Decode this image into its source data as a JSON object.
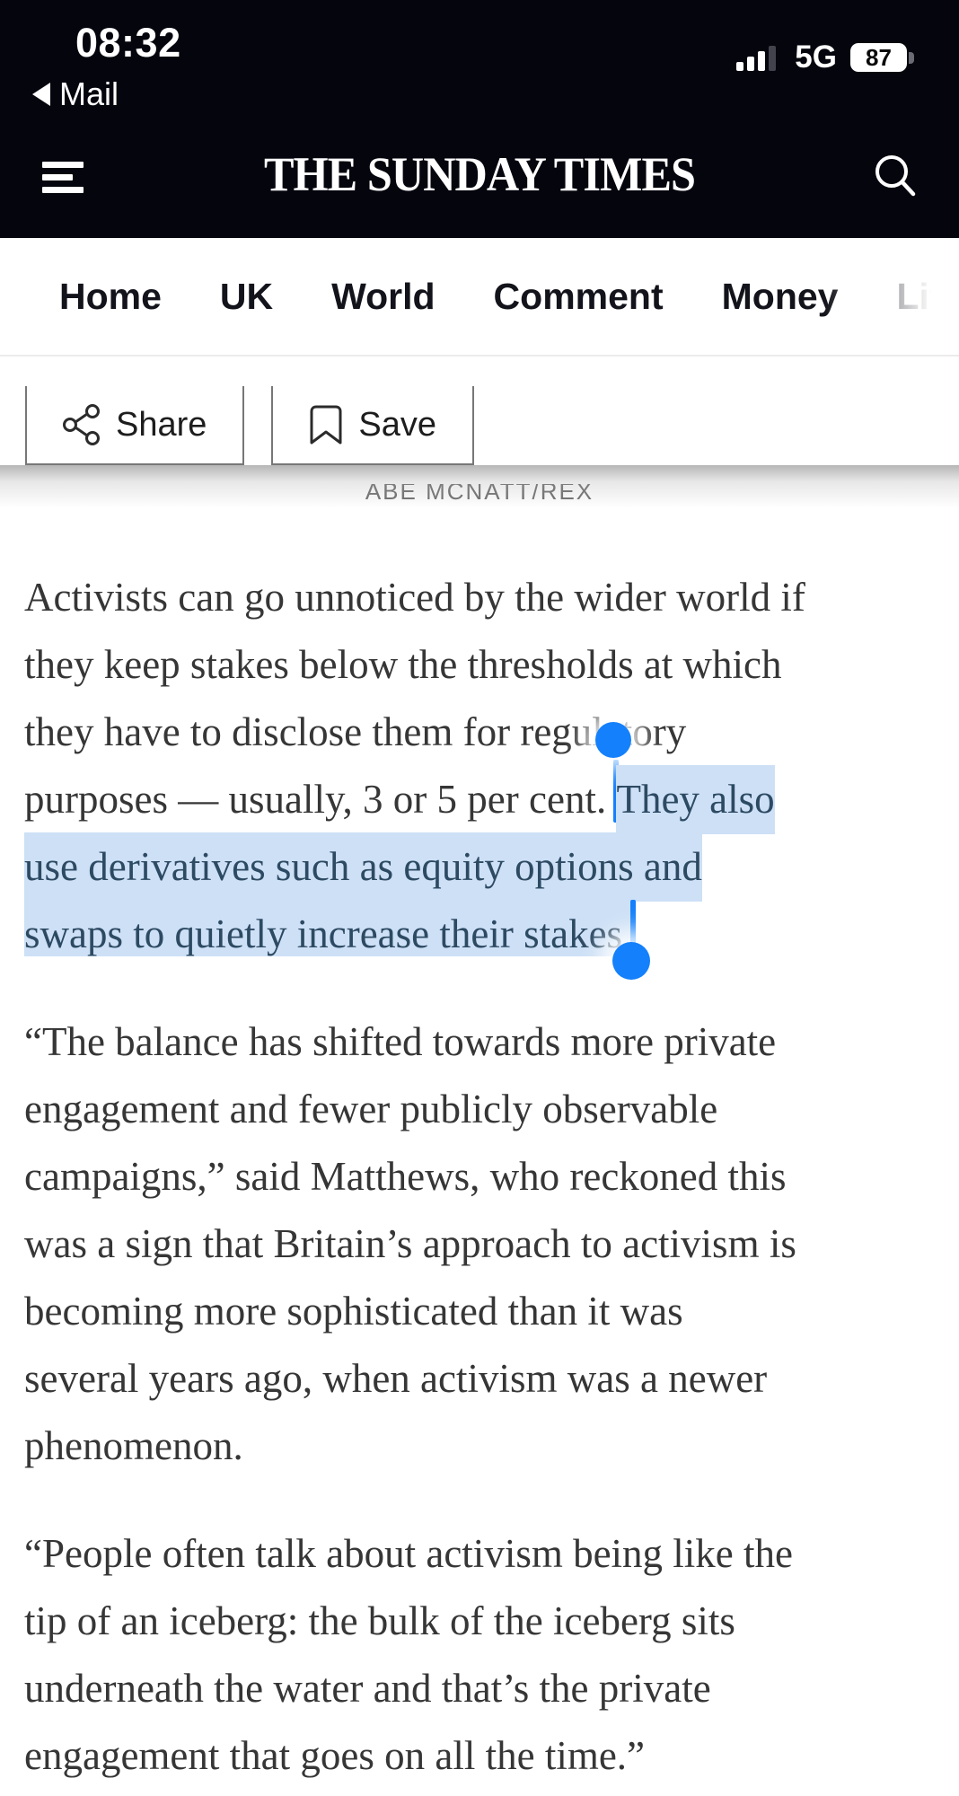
{
  "status_bar": {
    "time": "08:32",
    "back_app_label": "Mail",
    "network": "5G",
    "battery_percent": "87"
  },
  "header": {
    "title": "THE SUNDAY TIMES"
  },
  "nav": {
    "items": [
      "Home",
      "UK",
      "World",
      "Comment",
      "Money",
      "Life & St"
    ]
  },
  "toolbar": {
    "share_label": "Share",
    "save_label": "Save"
  },
  "caption": {
    "credit": "ABE MCNATT/REX"
  },
  "selection": {
    "selected_text": "They also use derivatives such as equity options and swaps to quietly increase their stakes.",
    "highlight_color": "#cde0f6",
    "handle_color": "#1480fb"
  },
  "article": {
    "paragraphs": [
      {
        "lines": [
          {
            "segments": [
              {
                "t": "Activists can go unnoticed by the wider world if"
              }
            ]
          },
          {
            "segments": [
              {
                "t": "they keep stakes below the thresholds at which"
              }
            ]
          },
          {
            "segments": [
              {
                "t": "they have to disclose them for regulatory"
              }
            ]
          },
          {
            "segments": [
              {
                "t": "purposes — usually, 3 or 5 per cent. "
              },
              {
                "t": "They also",
                "sel": true
              }
            ],
            "extend_right": true
          },
          {
            "segments": [
              {
                "t": "use derivatives such as equity options and",
                "sel": true
              }
            ],
            "extend_right": true
          },
          {
            "segments": [
              {
                "t": "swaps to quietly increase their stakes.",
                "sel": true
              }
            ]
          }
        ]
      },
      {
        "lines": [
          {
            "segments": [
              {
                "t": "“The balance has shifted towards more private"
              }
            ]
          },
          {
            "segments": [
              {
                "t": "engagement and fewer publicly observable"
              }
            ]
          },
          {
            "segments": [
              {
                "t": "campaigns,” said Matthews, who reckoned this"
              }
            ]
          },
          {
            "segments": [
              {
                "t": "was a sign that Britain’s approach to activism is"
              }
            ]
          },
          {
            "segments": [
              {
                "t": "becoming more sophisticated than it was"
              }
            ]
          },
          {
            "segments": [
              {
                "t": "several years ago, when activism was a newer"
              }
            ]
          },
          {
            "segments": [
              {
                "t": "phenomenon."
              }
            ]
          }
        ]
      },
      {
        "lines": [
          {
            "segments": [
              {
                "t": "“People often talk about activism being like the"
              }
            ]
          },
          {
            "segments": [
              {
                "t": "tip of an iceberg: the bulk of the iceberg sits"
              }
            ]
          },
          {
            "segments": [
              {
                "t": "underneath the water and that’s the private"
              }
            ]
          },
          {
            "segments": [
              {
                "t": "engagement that goes on all the time.”"
              }
            ]
          }
        ]
      }
    ]
  }
}
